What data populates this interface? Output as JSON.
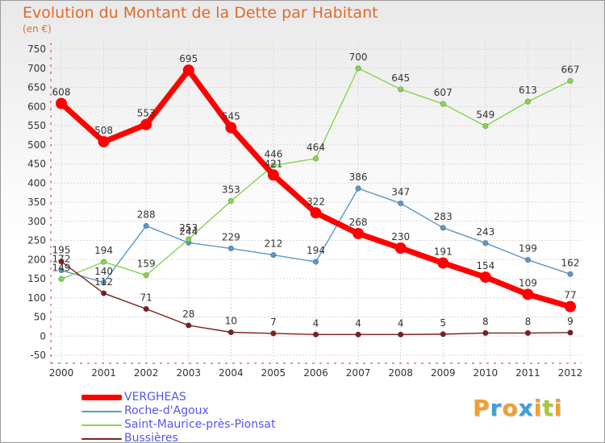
{
  "title": "Evolution du Montant de la Dette par Habitant",
  "subtitle": "(en €)",
  "logo": {
    "letters": [
      "P",
      "r",
      "o",
      "x",
      "i",
      "t",
      "i"
    ],
    "colors": [
      "#f0a030",
      "#3ea0d8",
      "#f0a030",
      "#3ea0d8",
      "#f0a030",
      "#a8c838",
      "#f0a030"
    ]
  },
  "chart_data": {
    "type": "line",
    "x": [
      "2000",
      "2001",
      "2002",
      "2003",
      "2004",
      "2005",
      "2006",
      "2007",
      "2008",
      "2009",
      "2010",
      "2011",
      "2012"
    ],
    "y_ticks": [
      "-50",
      "0",
      "50",
      "100",
      "150",
      "200",
      "250",
      "300",
      "350",
      "400",
      "450",
      "500",
      "550",
      "600",
      "650",
      "700",
      "750"
    ],
    "ylim": [
      -50,
      750
    ],
    "grid": true,
    "legend_position": "bottom-left",
    "series": [
      {
        "name": "VERGHEAS",
        "color": "#ff0000",
        "values": [
          608,
          508,
          553,
          695,
          545,
          421,
          322,
          268,
          230,
          191,
          154,
          109,
          77
        ],
        "labels": [
          "608",
          "508",
          "553",
          "695",
          "545",
          "421",
          "322",
          "268",
          "230",
          "191",
          "154",
          "109",
          "77"
        ]
      },
      {
        "name": "Roche-d'Agoux",
        "color": "#5b96c8",
        "values": [
          172,
          140,
          288,
          244,
          229,
          212,
          194,
          386,
          347,
          283,
          243,
          199,
          162
        ],
        "labels": [
          "172",
          "140",
          "288",
          "244",
          "229",
          "212",
          "194",
          "386",
          "347",
          "283",
          "243",
          "199",
          "162"
        ]
      },
      {
        "name": "Saint-Maurice-près-Pionsat",
        "color": "#86d450",
        "values": [
          149,
          194,
          159,
          253,
          353,
          446,
          464,
          700,
          645,
          607,
          549,
          613,
          667
        ],
        "labels": [
          "149",
          "194",
          "159",
          "253",
          "353",
          "446",
          "464",
          "700",
          "645",
          "607",
          "549",
          "613",
          "667"
        ]
      },
      {
        "name": "Bussières",
        "color": "#7a2020",
        "values": [
          195,
          112,
          71,
          28,
          10,
          7,
          4,
          4,
          4,
          5,
          8,
          8,
          9
        ],
        "labels": [
          "195",
          "112",
          "71",
          "28",
          "10",
          "7",
          "4",
          "4",
          "4",
          "5",
          "8",
          "8",
          "9"
        ]
      }
    ]
  }
}
